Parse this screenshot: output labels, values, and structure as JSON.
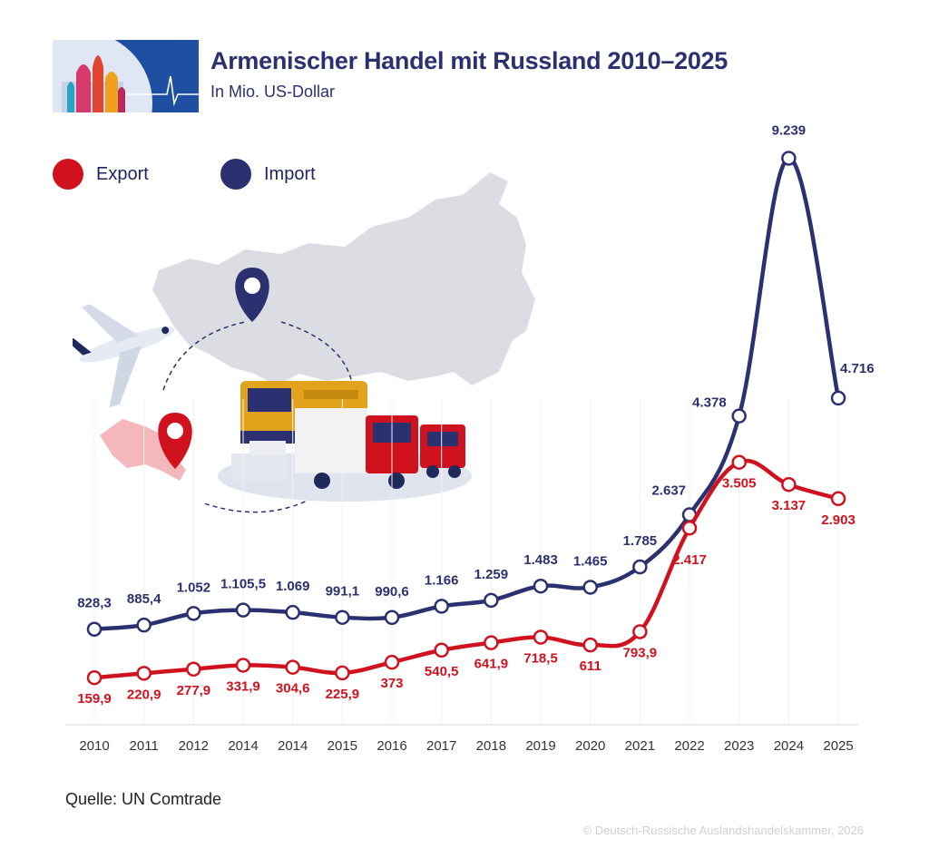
{
  "header": {
    "title": "Armenischer Handel mit Russland 2010–2025",
    "subtitle": "In Mio. US-Dollar"
  },
  "legend": [
    {
      "label": "Export",
      "color": "#d0121f"
    },
    {
      "label": "Import",
      "color": "#2b3170"
    }
  ],
  "footer": {
    "source": "Quelle: UN Comtrade",
    "copyright": "© Deutsch-Russische Auslandshandelskammer, 2026"
  },
  "chart_data": {
    "type": "line",
    "title": "Armenischer Handel mit Russland 2010–2025",
    "subtitle": "In Mio. US-Dollar",
    "categories": [
      "2010",
      "2011",
      "2012",
      "2014",
      "2014",
      "2015",
      "2016",
      "2017",
      "2018",
      "2019",
      "2020",
      "2021",
      "2022",
      "2023",
      "2024",
      "2025"
    ],
    "series": [
      {
        "name": "Import",
        "color": "#2b3170",
        "values": [
          828.3,
          885.4,
          1052,
          1105.5,
          1069,
          991.1,
          990.6,
          1166,
          1259,
          1483,
          1465,
          1785,
          2637,
          4378,
          9239,
          4716
        ],
        "labels": [
          "828,3",
          "885,4",
          "1.052",
          "1.105,5",
          "1.069",
          "991,1",
          "990,6",
          "1.166",
          "1.259",
          "1.483",
          "1.465",
          "1.785",
          "2.637",
          "4.378",
          "9.239",
          "4.716"
        ]
      },
      {
        "name": "Export",
        "color": "#d0121f",
        "values": [
          159.9,
          220.9,
          277.9,
          331.9,
          304.6,
          225.9,
          373,
          540.5,
          641.9,
          718.5,
          611,
          793.9,
          2417,
          3505,
          3137,
          2903
        ],
        "labels": [
          "159,9",
          "220,9",
          "277,9",
          "331,9",
          "304,6",
          "225,9",
          "373",
          "540,5",
          "641,9",
          "718,5",
          "611",
          "793,9",
          "2.417",
          "3.505",
          "3.137",
          "2.903"
        ]
      }
    ],
    "ylim": [
      0,
      9500
    ],
    "grid": false,
    "legend_position": "top-left"
  }
}
